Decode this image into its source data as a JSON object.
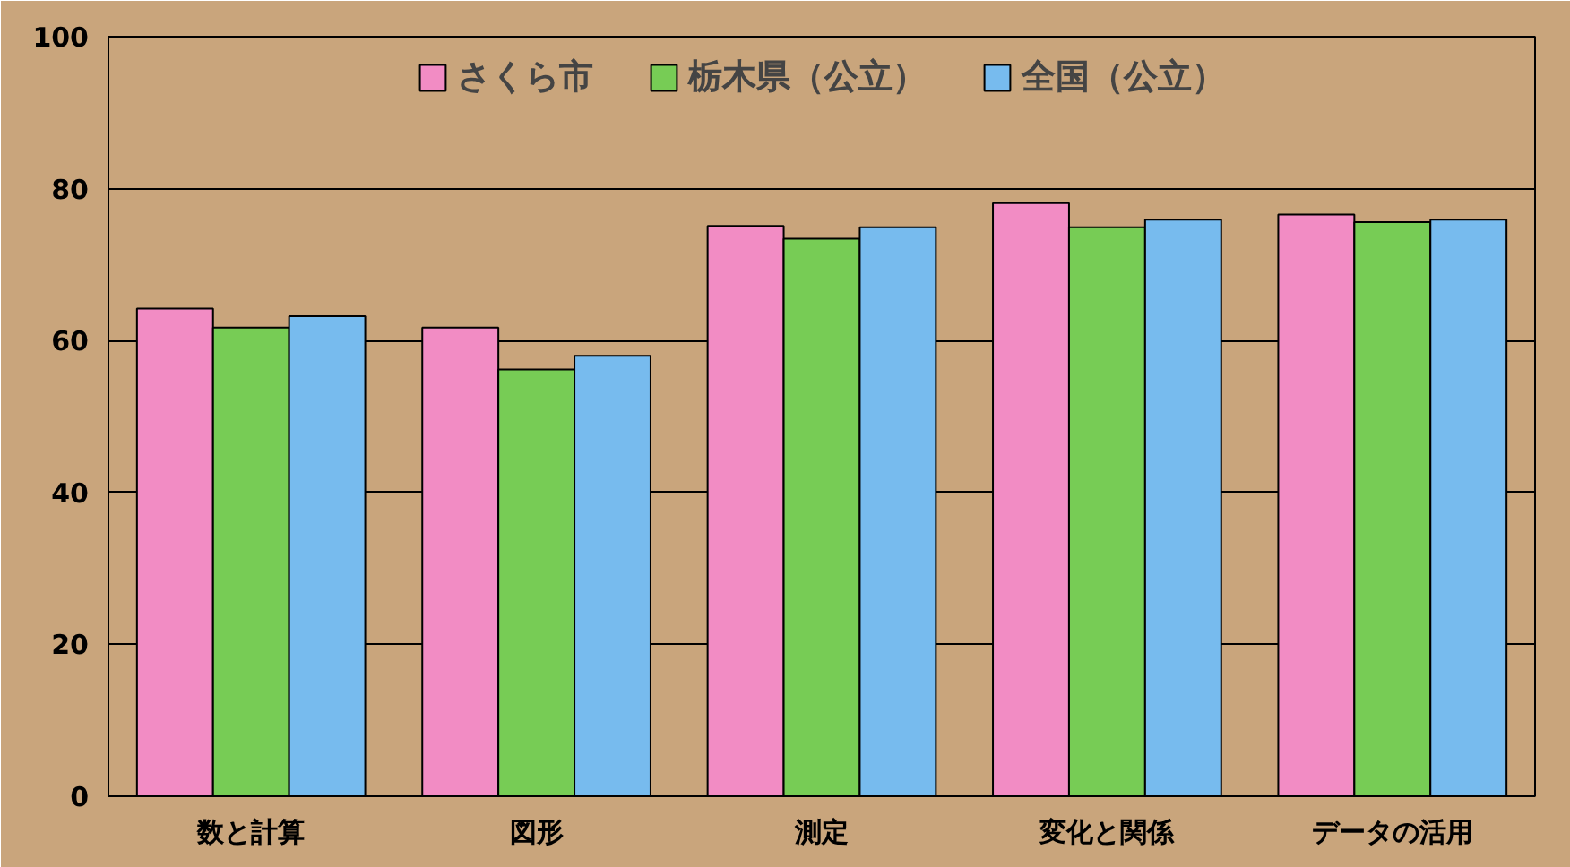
{
  "chart_data": {
    "type": "bar",
    "categories": [
      "数と計算",
      "図形",
      "測定",
      "変化と関係",
      "データの活用"
    ],
    "series": [
      {
        "name": "さくら市",
        "color": "#f28cc4",
        "values": [
          64.2,
          61.7,
          75.1,
          78.1,
          76.6
        ]
      },
      {
        "name": "栃木県（公立）",
        "color": "#77cc55",
        "values": [
          61.7,
          56.2,
          73.4,
          74.9,
          75.6
        ]
      },
      {
        "name": "全国（公立）",
        "color": "#77bbee",
        "values": [
          63.2,
          58.0,
          74.9,
          75.9,
          75.9
        ]
      }
    ],
    "ylim": [
      0,
      100
    ],
    "yticks": [
      0,
      20,
      40,
      60,
      80,
      100
    ],
    "grid": "y",
    "legend": "top"
  }
}
